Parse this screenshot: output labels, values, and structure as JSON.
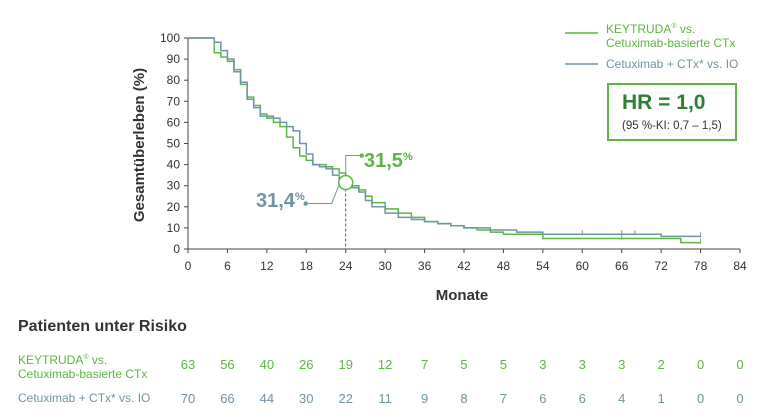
{
  "chart_data": {
    "type": "line",
    "title": "",
    "xlabel": "Monate",
    "ylabel": "Gesamtüberleben (%)",
    "xlim": [
      0,
      84
    ],
    "ylim": [
      0,
      100
    ],
    "xticks": [
      "0",
      "6",
      "12",
      "18",
      "24",
      "30",
      "36",
      "42",
      "48",
      "54",
      "60",
      "66",
      "72",
      "78",
      "84"
    ],
    "yticks": [
      "0",
      "10",
      "20",
      "30",
      "40",
      "50",
      "60",
      "70",
      "80",
      "90",
      "100"
    ],
    "series": [
      {
        "name": "KEYTRUDA® vs. Cetuximab-basierte CTx",
        "color": "#5db544",
        "x": [
          0,
          3,
          4,
          5,
          6,
          7,
          8,
          9,
          10,
          11,
          12,
          13,
          14,
          15,
          16,
          17,
          18,
          19,
          20,
          21,
          22,
          23,
          24,
          25,
          26,
          27,
          28,
          30,
          32,
          34,
          36,
          38,
          40,
          42,
          44,
          46,
          48,
          50,
          52,
          54,
          60,
          66,
          72,
          75,
          78
        ],
        "y": [
          100,
          100,
          93,
          91,
          89,
          85,
          78,
          72,
          68,
          64,
          62,
          60,
          58,
          53,
          48,
          44,
          42,
          40,
          40,
          39,
          38,
          36,
          31.5,
          30,
          28,
          25,
          22,
          19,
          17,
          15,
          13,
          12,
          11,
          10,
          9,
          8,
          7,
          7,
          7,
          5,
          5,
          5,
          5,
          3,
          3
        ]
      },
      {
        "name": "Cetuximab + CTx* vs. IO",
        "color": "#6e95a2",
        "x": [
          0,
          3,
          4,
          5,
          6,
          7,
          8,
          9,
          10,
          11,
          12,
          13,
          14,
          15,
          16,
          17,
          18,
          19,
          20,
          21,
          22,
          23,
          24,
          25,
          26,
          27,
          28,
          30,
          32,
          34,
          36,
          38,
          40,
          42,
          44,
          46,
          48,
          50,
          54,
          60,
          66,
          72,
          75,
          78
        ],
        "y": [
          100,
          100,
          98,
          94,
          90,
          84,
          79,
          71,
          67,
          63,
          63,
          62,
          60,
          58,
          56,
          50,
          45,
          40,
          39,
          38,
          35,
          33,
          31.4,
          29,
          27,
          23,
          20,
          17,
          15,
          14,
          13,
          12,
          11,
          10,
          10,
          9,
          9,
          8,
          7,
          7,
          7,
          6,
          6,
          6
        ]
      }
    ],
    "annotations": [
      {
        "series": 0,
        "x": 24,
        "value": "31,5",
        "unit": "%"
      },
      {
        "series": 1,
        "x": 24,
        "value": "31,4",
        "unit": "%"
      }
    ],
    "hr": {
      "main": "HR = 1,0",
      "ci": "(95 %-KI: 0,7 – 1,5)"
    },
    "legend": [
      {
        "line1": "KEYTRUDA",
        "reg": "®",
        "line1b": " vs.",
        "line2": "Cetuximab-basierte CTx"
      },
      {
        "line1": "Cetuximab + CTx* vs. IO"
      }
    ],
    "risk_table": {
      "title": "Patienten unter Risiko",
      "rows": [
        {
          "label1": "KEYTRUDA",
          "reg": "®",
          "label1b": " vs.",
          "label2": "Cetuximab-basierte CTx",
          "values": [
            "63",
            "56",
            "40",
            "26",
            "19",
            "12",
            "7",
            "5",
            "5",
            "3",
            "3",
            "3",
            "2",
            "0",
            "0"
          ]
        },
        {
          "label1": "Cetuximab + CTx* vs. IO",
          "values": [
            "70",
            "66",
            "44",
            "30",
            "22",
            "11",
            "9",
            "8",
            "7",
            "6",
            "6",
            "4",
            "1",
            "0",
            "0"
          ]
        }
      ]
    }
  }
}
